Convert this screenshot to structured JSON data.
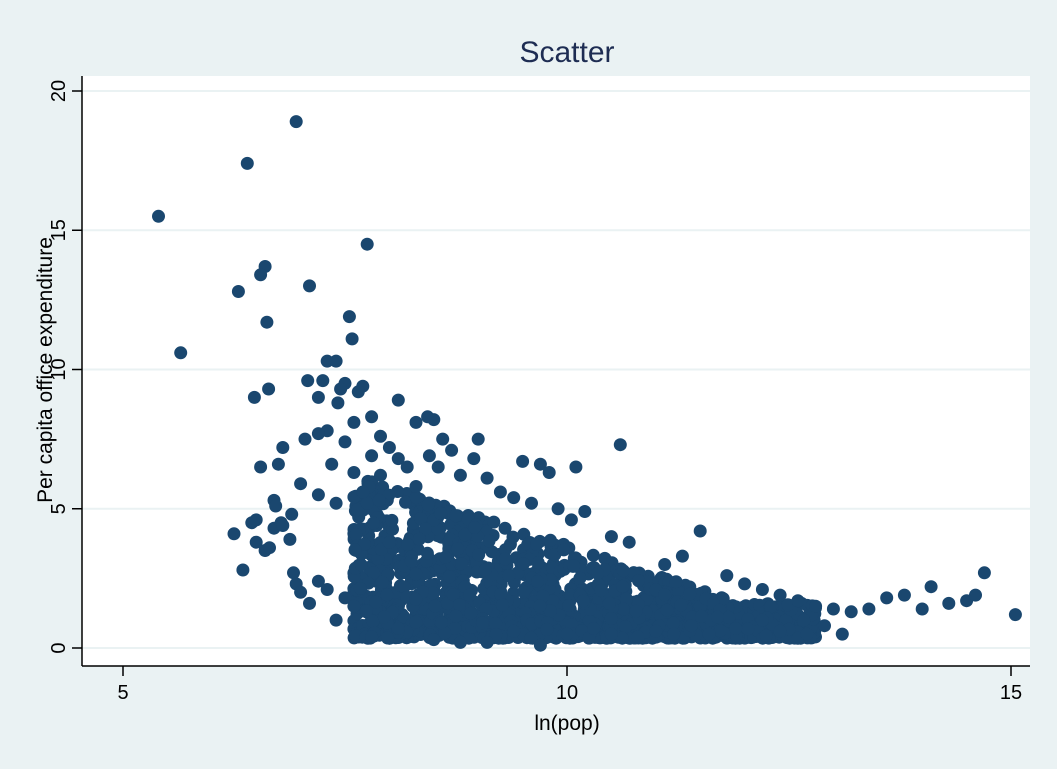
{
  "chart_data": {
    "type": "scatter",
    "title": "Scatter",
    "xlabel": "ln(pop)",
    "ylabel": "Per capita office expenditure",
    "xlim": [
      5,
      15
    ],
    "ylim": [
      0,
      20
    ],
    "xticks": [
      5,
      10,
      15
    ],
    "yticks": [
      0,
      5,
      10,
      15,
      20
    ],
    "grid": "horizontal",
    "legend": "none",
    "colors": {
      "marker": "#1a476f",
      "background": "#eaf2f3",
      "plot_area": "#ffffff",
      "grid": "#eaf2f3",
      "title": "#1e2d53"
    },
    "points": [
      [
        5.4,
        15.5
      ],
      [
        5.65,
        10.6
      ],
      [
        6.3,
        12.8
      ],
      [
        6.4,
        17.4
      ],
      [
        6.6,
        13.7
      ],
      [
        6.55,
        13.4
      ],
      [
        6.62,
        11.7
      ],
      [
        6.64,
        9.3
      ],
      [
        6.48,
        9.0
      ],
      [
        6.95,
        18.9
      ],
      [
        7.1,
        13.0
      ],
      [
        7.75,
        14.5
      ],
      [
        7.55,
        11.9
      ],
      [
        7.58,
        11.1
      ],
      [
        7.3,
        10.3
      ],
      [
        7.4,
        10.3
      ],
      [
        7.25,
        9.6
      ],
      [
        7.08,
        9.6
      ],
      [
        7.5,
        9.5
      ],
      [
        7.45,
        9.3
      ],
      [
        7.7,
        9.4
      ],
      [
        7.65,
        9.2
      ],
      [
        7.2,
        9.0
      ],
      [
        7.42,
        8.8
      ],
      [
        7.8,
        8.3
      ],
      [
        8.43,
        8.3
      ],
      [
        8.1,
        8.9
      ],
      [
        7.6,
        8.1
      ],
      [
        7.3,
        7.8
      ],
      [
        7.05,
        7.5
      ],
      [
        7.2,
        7.7
      ],
      [
        7.5,
        7.4
      ],
      [
        7.9,
        7.6
      ],
      [
        8.3,
        8.1
      ],
      [
        8.5,
        8.2
      ],
      [
        8.6,
        7.5
      ],
      [
        9.0,
        7.5
      ],
      [
        10.6,
        7.3
      ],
      [
        10.1,
        6.5
      ],
      [
        9.5,
        6.7
      ],
      [
        9.7,
        6.6
      ],
      [
        9.8,
        6.3
      ],
      [
        6.8,
        7.2
      ],
      [
        6.75,
        6.6
      ],
      [
        6.55,
        6.5
      ],
      [
        6.7,
        5.3
      ],
      [
        6.72,
        5.1
      ],
      [
        6.9,
        4.8
      ],
      [
        6.25,
        4.1
      ],
      [
        6.45,
        4.5
      ],
      [
        6.5,
        4.6
      ],
      [
        6.35,
        2.8
      ],
      [
        6.5,
        3.8
      ],
      [
        6.6,
        3.5
      ],
      [
        6.65,
        3.6
      ],
      [
        6.7,
        4.3
      ],
      [
        6.78,
        4.5
      ],
      [
        6.8,
        4.4
      ],
      [
        6.88,
        3.9
      ],
      [
        6.92,
        2.7
      ],
      [
        6.95,
        2.3
      ],
      [
        7.0,
        2.0
      ],
      [
        7.1,
        1.6
      ],
      [
        7.2,
        2.4
      ],
      [
        7.3,
        2.1
      ],
      [
        7.4,
        1.0
      ],
      [
        7.5,
        1.8
      ],
      [
        7.6,
        1.5
      ],
      [
        7.8,
        0.4
      ],
      [
        8.1,
        0.7
      ],
      [
        8.5,
        0.3
      ],
      [
        8.8,
        0.2
      ],
      [
        9.1,
        0.2
      ],
      [
        9.4,
        0.6
      ],
      [
        9.7,
        0.1
      ],
      [
        10.0,
        0.5
      ],
      [
        7.0,
        5.9
      ],
      [
        7.2,
        5.5
      ],
      [
        7.35,
        6.6
      ],
      [
        7.4,
        5.2
      ],
      [
        7.6,
        6.3
      ],
      [
        7.7,
        5.6
      ],
      [
        7.8,
        6.9
      ],
      [
        7.9,
        6.2
      ],
      [
        8.0,
        7.2
      ],
      [
        8.1,
        6.8
      ],
      [
        8.2,
        6.5
      ],
      [
        8.3,
        5.8
      ],
      [
        8.45,
        6.9
      ],
      [
        8.55,
        6.5
      ],
      [
        8.7,
        7.1
      ],
      [
        8.8,
        6.2
      ],
      [
        8.95,
        6.8
      ],
      [
        9.1,
        6.1
      ],
      [
        9.25,
        5.6
      ],
      [
        9.4,
        5.4
      ],
      [
        9.6,
        5.2
      ],
      [
        9.9,
        5.0
      ],
      [
        10.05,
        4.6
      ],
      [
        10.2,
        4.9
      ],
      [
        10.5,
        4.0
      ],
      [
        10.7,
        3.8
      ],
      [
        11.1,
        3.0
      ],
      [
        11.5,
        4.2
      ],
      [
        11.3,
        3.3
      ],
      [
        11.8,
        2.6
      ],
      [
        12.0,
        2.3
      ],
      [
        12.2,
        2.1
      ],
      [
        12.4,
        1.9
      ],
      [
        12.6,
        1.7
      ],
      [
        12.8,
        1.5
      ],
      [
        13.0,
        1.4
      ],
      [
        13.2,
        1.3
      ],
      [
        13.4,
        1.4
      ],
      [
        13.6,
        1.8
      ],
      [
        13.8,
        1.9
      ],
      [
        14.0,
        1.4
      ],
      [
        14.1,
        2.2
      ],
      [
        14.3,
        1.6
      ],
      [
        14.5,
        1.7
      ],
      [
        14.6,
        1.9
      ],
      [
        14.7,
        2.7
      ],
      [
        15.05,
        1.2
      ],
      [
        13.1,
        0.5
      ],
      [
        12.9,
        0.8
      ],
      [
        12.7,
        0.5
      ],
      [
        12.4,
        0.6
      ],
      [
        12.2,
        1.0
      ],
      [
        11.9,
        0.7
      ],
      [
        11.6,
        0.5
      ],
      [
        11.4,
        0.8
      ],
      [
        11.2,
        0.5
      ],
      [
        11.0,
        0.6
      ],
      [
        10.8,
        0.4
      ],
      [
        10.5,
        0.5
      ],
      [
        10.3,
        0.7
      ]
    ]
  }
}
